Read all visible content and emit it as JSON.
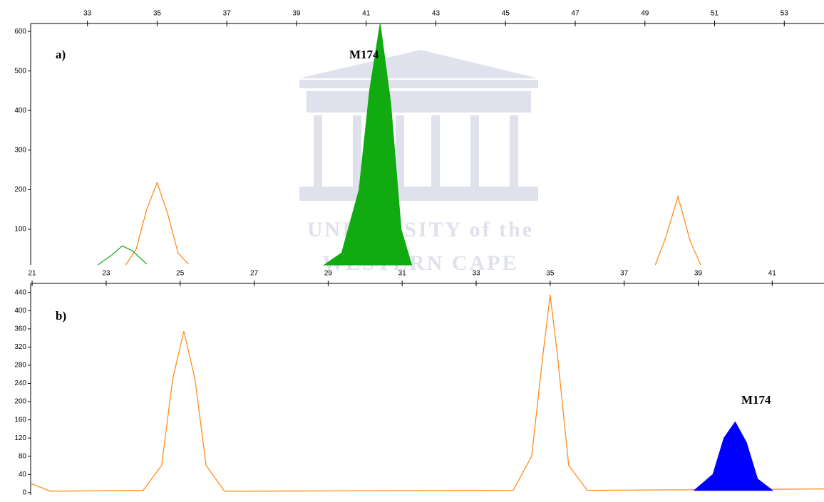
{
  "chart_data": [
    {
      "type": "line",
      "xlim": [
        31.37,
        54.14
      ],
      "xticks": [
        33,
        35,
        37,
        39,
        41,
        43,
        45,
        47,
        49,
        51,
        53
      ],
      "ylim": [
        10,
        620
      ],
      "yticks": [
        100,
        200,
        300,
        400,
        500,
        600
      ],
      "series": [
        {
          "color": "#ff8c1a",
          "x": [
            34.1,
            34.4,
            34.7,
            35.0,
            35.3,
            35.6,
            35.9
          ],
          "values": [
            10,
            50,
            150,
            218,
            140,
            40,
            12
          ]
        },
        {
          "color": "#ff8c1a",
          "x": [
            49.3,
            49.6,
            49.95,
            50.3,
            50.6
          ],
          "values": [
            10,
            80,
            183,
            70,
            10
          ]
        },
        {
          "color": "#22aa22",
          "x": [
            33.3,
            33.7,
            34.0,
            34.3,
            34.7
          ],
          "values": [
            10,
            35,
            58,
            45,
            12
          ]
        },
        {
          "color": "#11aa11",
          "fill": true,
          "x": [
            39.8,
            40.3,
            40.8,
            41.1,
            41.4,
            41.7,
            42.0,
            42.3
          ],
          "values": [
            10,
            40,
            200,
            450,
            618,
            420,
            100,
            10
          ]
        }
      ],
      "annotations": [
        "a)",
        "M174"
      ]
    },
    {
      "type": "line",
      "xlim": [
        20.96,
        42.4
      ],
      "xticks": [
        21,
        23,
        25,
        27,
        29,
        31,
        33,
        35,
        37,
        39,
        41
      ],
      "ylim": [
        -5,
        460
      ],
      "yticks": [
        0,
        40,
        80,
        120,
        160,
        200,
        240,
        280,
        320,
        360,
        400,
        440
      ],
      "series": [
        {
          "color": "#ff8c1a",
          "x": [
            20.96,
            21.5,
            24.0,
            24.5,
            24.8,
            25.1,
            25.4,
            25.7,
            26.2,
            34.0,
            34.5,
            34.8,
            35.0,
            35.2,
            35.5,
            36.0,
            42.4
          ],
          "values": [
            20,
            3,
            5,
            60,
            250,
            355,
            250,
            60,
            3,
            5,
            80,
            300,
            435,
            300,
            60,
            5,
            8
          ]
        },
        {
          "color": "#0000ff",
          "fill": true,
          "x": [
            38.9,
            39.4,
            39.7,
            40.0,
            40.3,
            40.6,
            41.0
          ],
          "values": [
            5,
            40,
            120,
            155,
            110,
            30,
            5
          ]
        }
      ],
      "annotations": [
        "b)",
        "M174"
      ]
    }
  ],
  "watermark": [
    "UNIVERSITY of the",
    "WESTERN CAPE"
  ]
}
